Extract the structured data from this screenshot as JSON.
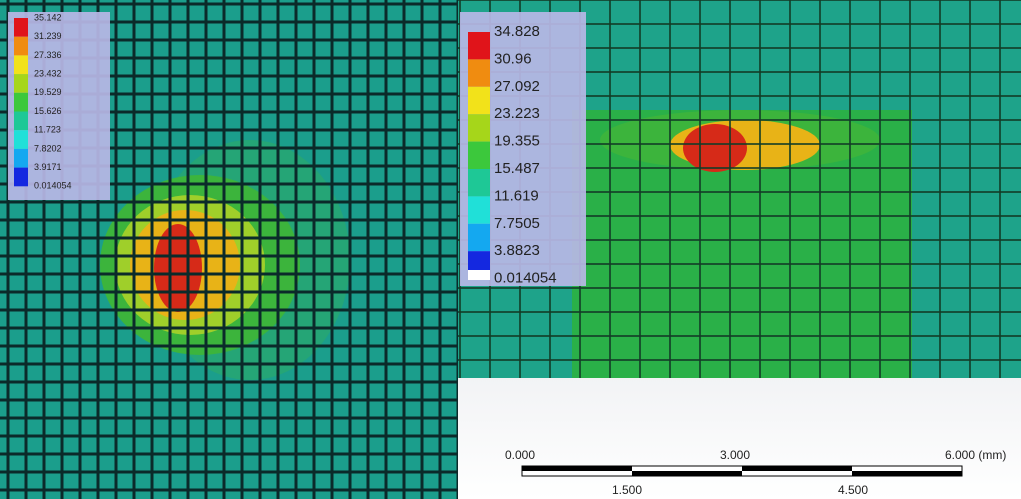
{
  "left_legend": {
    "labels": [
      "35.142",
      "31.239",
      "27.336",
      "23.432",
      "19.529",
      "15.626",
      "11.723",
      "7.8202",
      "3.9171",
      "0.014054"
    ]
  },
  "right_legend": {
    "labels": [
      "34.828",
      "30.96",
      "27.092",
      "23.223",
      "19.355",
      "15.487",
      "11.619",
      "7.7505",
      "3.8823",
      "0.014054"
    ]
  },
  "scale_bar": {
    "top_labels": [
      "0.000",
      "3.000",
      "6.000 (mm)"
    ],
    "bottom_labels": [
      "1.500",
      "4.500"
    ]
  }
}
